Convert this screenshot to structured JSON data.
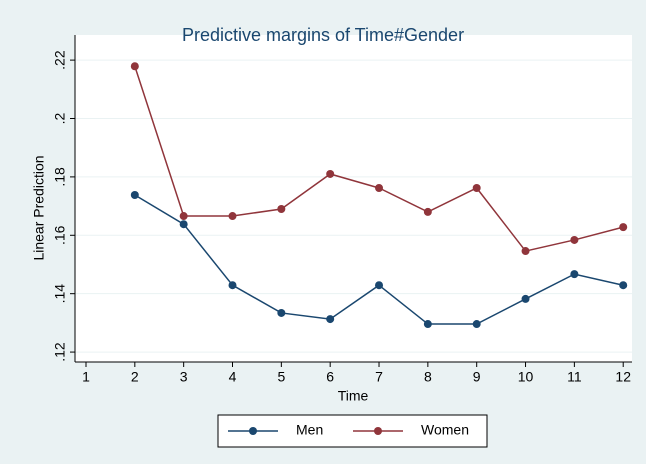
{
  "chart_data": {
    "type": "line",
    "title": "Predictive margins of Time#Gender",
    "x_label": "Time",
    "y_label": "Linear Prediction",
    "x": [
      2,
      3,
      4,
      5,
      6,
      7,
      8,
      9,
      10,
      11,
      12
    ],
    "series": [
      {
        "name": "Men",
        "color": "#1a476f",
        "values": [
          0.1738,
          0.1638,
          0.1429,
          0.1334,
          0.1313,
          0.1429,
          0.1296,
          0.1296,
          0.1382,
          0.1467,
          0.1429
        ]
      },
      {
        "name": "Women",
        "color": "#90353b",
        "values": [
          0.2179,
          0.1666,
          0.1666,
          0.169,
          0.181,
          0.1762,
          0.168,
          0.1762,
          0.1546,
          0.1584,
          0.1628
        ]
      }
    ],
    "xlim": [
      0.775,
      12.18
    ],
    "xticks": [
      1,
      2,
      3,
      4,
      5,
      6,
      7,
      8,
      9,
      10,
      11,
      12
    ],
    "ylim": [
      0.1166,
      0.2286
    ],
    "yticks": [
      {
        "value": 0.12,
        "label": ".12"
      },
      {
        "value": 0.14,
        "label": ".14"
      },
      {
        "value": 0.16,
        "label": ".16"
      },
      {
        "value": 0.18,
        "label": ".18"
      },
      {
        "value": 0.2,
        "label": ".2"
      },
      {
        "value": 0.22,
        "label": ".22"
      }
    ],
    "grid": true,
    "legend": "bottom"
  }
}
